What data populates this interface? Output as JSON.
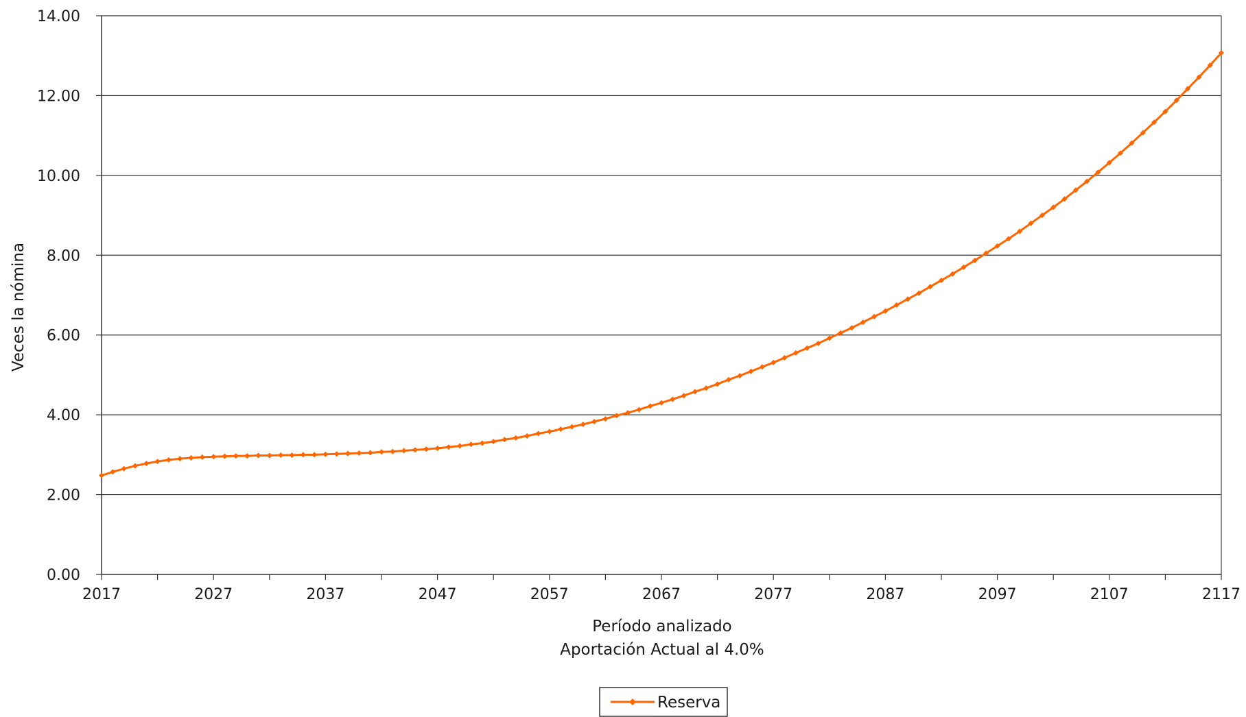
{
  "chart_data": {
    "type": "line",
    "title": "",
    "xlabel": "Período analizado",
    "xlabel_subtitle": "Aportación Actual al 4.0%",
    "ylabel": "Veces la nómina",
    "xlim": [
      2017,
      2117
    ],
    "ylim": [
      0,
      14
    ],
    "x_tick_labels": [
      "2017",
      "2027",
      "2037",
      "2047",
      "2057",
      "2067",
      "2077",
      "2087",
      "2097",
      "2107",
      "2117"
    ],
    "y_tick_labels": [
      "0.00",
      "2.00",
      "4.00",
      "6.00",
      "8.00",
      "10.00",
      "12.00",
      "14.00"
    ],
    "y_ticks": [
      0,
      2,
      4,
      6,
      8,
      10,
      12,
      14
    ],
    "grid": "horizontal",
    "legend_position": "bottom-center",
    "series": [
      {
        "name": "Reserva",
        "color": "#FF6600",
        "marker": "diamond",
        "x_start": 2017,
        "x_step": 1,
        "values": [
          2.48,
          2.57,
          2.65,
          2.72,
          2.78,
          2.83,
          2.87,
          2.9,
          2.92,
          2.94,
          2.95,
          2.96,
          2.97,
          2.97,
          2.98,
          2.98,
          2.99,
          2.99,
          3.0,
          3.0,
          3.01,
          3.02,
          3.03,
          3.04,
          3.05,
          3.07,
          3.08,
          3.1,
          3.12,
          3.14,
          3.16,
          3.19,
          3.22,
          3.26,
          3.29,
          3.33,
          3.38,
          3.42,
          3.47,
          3.53,
          3.58,
          3.64,
          3.7,
          3.76,
          3.83,
          3.9,
          3.98,
          4.05,
          4.13,
          4.22,
          4.3,
          4.39,
          4.48,
          4.58,
          4.67,
          4.77,
          4.88,
          4.98,
          5.09,
          5.2,
          5.31,
          5.43,
          5.55,
          5.67,
          5.79,
          5.92,
          6.05,
          6.18,
          6.32,
          6.46,
          6.6,
          6.75,
          6.9,
          7.05,
          7.21,
          7.37,
          7.53,
          7.7,
          7.87,
          8.05,
          8.23,
          8.41,
          8.6,
          8.8,
          9.0,
          9.2,
          9.41,
          9.63,
          9.85,
          10.08,
          10.32,
          10.56,
          10.81,
          11.07,
          11.33,
          11.6,
          11.88,
          12.17,
          12.46,
          12.76,
          13.07
        ]
      }
    ]
  }
}
